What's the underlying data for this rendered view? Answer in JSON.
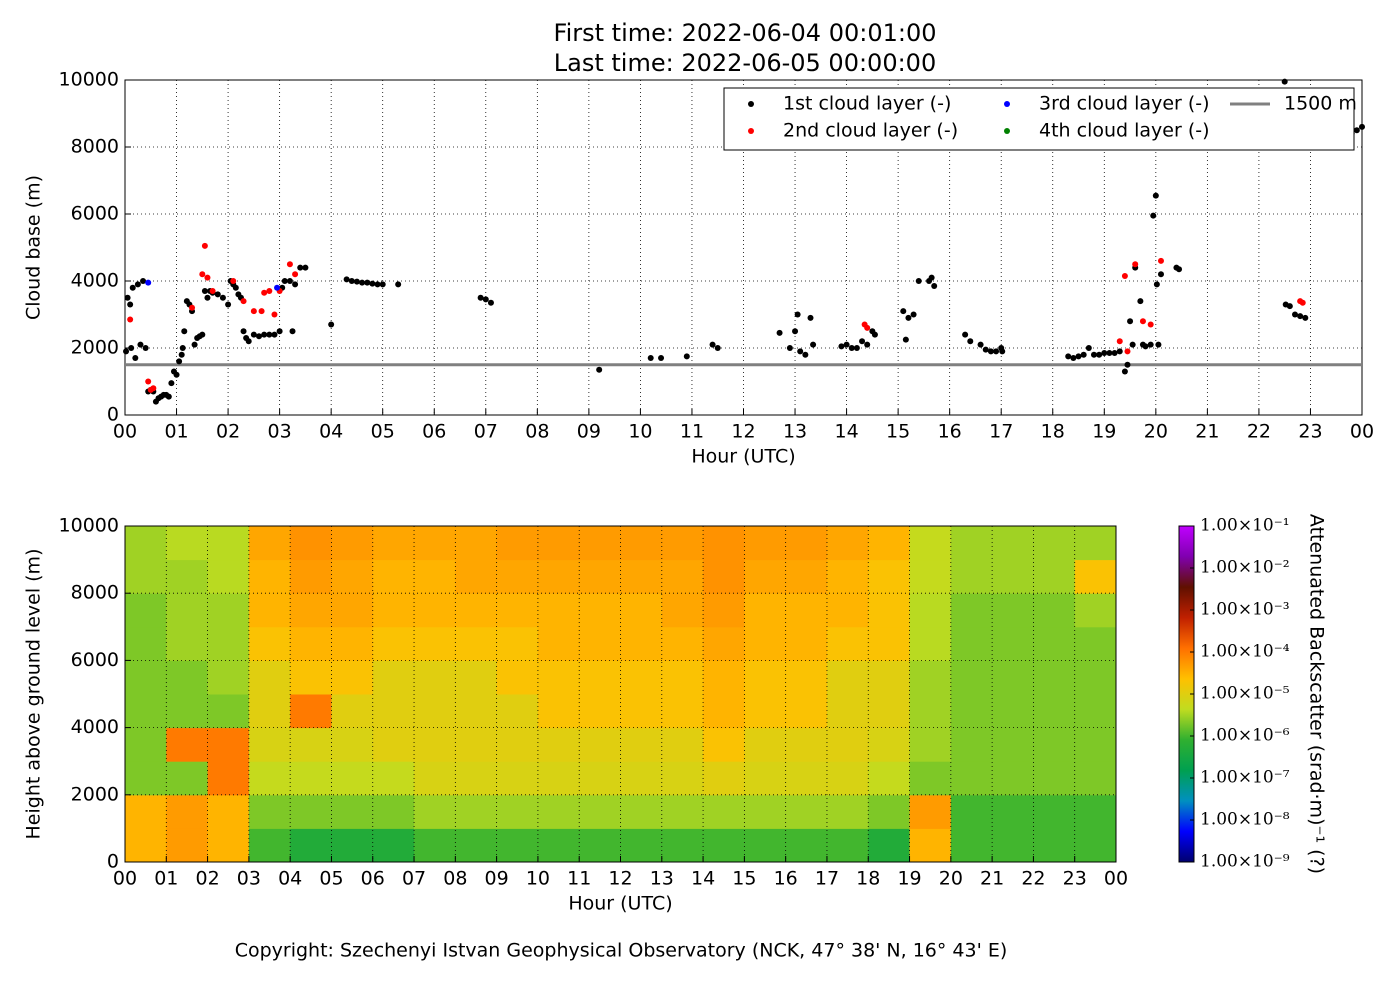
{
  "footer": "Copyright: Szechenyi Istvan Geophysical Observatory (NCK, 47° 38' N, 16° 43' E)",
  "chart_data": [
    {
      "type": "scatter",
      "title": "First time: 2022-06-04 00:01:00",
      "subtitle": "Last time: 2022-06-05 00:00:00",
      "xlabel": "Hour (UTC)",
      "ylabel": "Cloud base (m)",
      "xlim": [
        0,
        24
      ],
      "ylim": [
        0,
        10000
      ],
      "xticks": [
        {
          "value": 0,
          "label": "00"
        },
        {
          "value": 1,
          "label": "01"
        },
        {
          "value": 2,
          "label": "02"
        },
        {
          "value": 3,
          "label": "03"
        },
        {
          "value": 4,
          "label": "04"
        },
        {
          "value": 5,
          "label": "05"
        },
        {
          "value": 6,
          "label": "06"
        },
        {
          "value": 7,
          "label": "07"
        },
        {
          "value": 8,
          "label": "08"
        },
        {
          "value": 9,
          "label": "09"
        },
        {
          "value": 10,
          "label": "10"
        },
        {
          "value": 11,
          "label": "11"
        },
        {
          "value": 12,
          "label": "12"
        },
        {
          "value": 13,
          "label": "13"
        },
        {
          "value": 14,
          "label": "14"
        },
        {
          "value": 15,
          "label": "15"
        },
        {
          "value": 16,
          "label": "16"
        },
        {
          "value": 17,
          "label": "17"
        },
        {
          "value": 18,
          "label": "18"
        },
        {
          "value": 19,
          "label": "19"
        },
        {
          "value": 20,
          "label": "20"
        },
        {
          "value": 21,
          "label": "21"
        },
        {
          "value": 22,
          "label": "22"
        },
        {
          "value": 23,
          "label": "23"
        },
        {
          "value": 24,
          "label": "00"
        }
      ],
      "yticks": [
        0,
        2000,
        4000,
        6000,
        8000,
        10000
      ],
      "grid": true,
      "legend": "upper right",
      "legend_columns": 3,
      "series": [
        {
          "name": "1st cloud layer (-)",
          "color": "#000000",
          "x": [
            0.02,
            0.05,
            0.1,
            0.12,
            0.15,
            0.2,
            0.25,
            0.3,
            0.35,
            0.4,
            0.45,
            0.5,
            0.55,
            0.6,
            0.65,
            0.7,
            0.75,
            0.8,
            0.85,
            0.9,
            0.95,
            1.0,
            1.05,
            1.1,
            1.12,
            1.15,
            1.2,
            1.25,
            1.3,
            1.35,
            1.4,
            1.45,
            1.5,
            1.55,
            1.6,
            1.65,
            1.7,
            1.8,
            1.9,
            2.0,
            2.05,
            2.1,
            2.15,
            2.2,
            2.25,
            2.3,
            2.35,
            2.4,
            2.5,
            2.6,
            2.7,
            2.8,
            2.9,
            3.0,
            3.05,
            3.1,
            3.2,
            3.25,
            3.3,
            3.4,
            3.5,
            4.0,
            4.3,
            4.4,
            4.5,
            4.6,
            4.7,
            4.8,
            4.9,
            5.0,
            5.3,
            6.9,
            7.0,
            7.1,
            9.2,
            10.2,
            10.4,
            10.9,
            11.4,
            11.5,
            12.7,
            12.9,
            13.0,
            13.05,
            13.1,
            13.2,
            13.3,
            13.35,
            13.9,
            14.0,
            14.1,
            14.2,
            14.3,
            14.4,
            14.5,
            14.55,
            15.1,
            15.15,
            15.2,
            15.3,
            15.4,
            15.6,
            15.65,
            15.7,
            16.3,
            16.4,
            16.6,
            16.7,
            16.8,
            16.9,
            17.0,
            17.02,
            18.3,
            18.4,
            18.5,
            18.6,
            18.7,
            18.8,
            18.9,
            19.0,
            19.1,
            19.2,
            19.3,
            19.4,
            19.45,
            19.5,
            19.55,
            19.6,
            19.7,
            19.75,
            19.8,
            19.9,
            19.95,
            20.0,
            20.02,
            20.05,
            20.1,
            20.4,
            20.45,
            22.5,
            22.52,
            22.6,
            22.7,
            22.8,
            22.9,
            23.8,
            23.9,
            24.0
          ],
          "values": [
            1900,
            3500,
            3300,
            2000,
            3800,
            1700,
            3900,
            2100,
            4000,
            2000,
            700,
            750,
            700,
            400,
            500,
            550,
            600,
            600,
            550,
            950,
            1300,
            1200,
            1600,
            1800,
            2000,
            2500,
            3400,
            3300,
            3100,
            2100,
            2300,
            2350,
            2400,
            3700,
            3500,
            3700,
            3650,
            3600,
            3500,
            3300,
            4000,
            3900,
            3800,
            3600,
            3500,
            2500,
            2300,
            2200,
            2400,
            2350,
            2400,
            2400,
            2400,
            2500,
            3800,
            4000,
            4000,
            2500,
            3900,
            4400,
            4400,
            2700,
            4050,
            4000,
            3980,
            3950,
            3950,
            3920,
            3900,
            3900,
            3900,
            3500,
            3450,
            3350,
            1350,
            1700,
            1700,
            1750,
            2100,
            2000,
            2450,
            2000,
            2500,
            3000,
            1900,
            1800,
            2900,
            2100,
            2050,
            2100,
            2000,
            2000,
            2200,
            2100,
            2500,
            2400,
            3100,
            2250,
            2900,
            3000,
            4000,
            4000,
            4100,
            3850,
            2400,
            2200,
            2100,
            1950,
            1900,
            1900,
            2000,
            1900,
            1750,
            1700,
            1750,
            1800,
            2000,
            1800,
            1800,
            1850,
            1850,
            1850,
            1900,
            1300,
            1500,
            2800,
            2100,
            4400,
            3400,
            2100,
            2050,
            2100,
            5950,
            6550,
            3900,
            2100,
            4200,
            4400,
            4350,
            9950,
            3300,
            3250,
            3000,
            2950,
            2900,
            8400,
            8500,
            8600
          ]
        },
        {
          "name": "2nd cloud layer (-)",
          "color": "#ff0000",
          "x": [
            0.1,
            0.45,
            0.5,
            0.55,
            1.3,
            1.5,
            1.55,
            1.6,
            1.7,
            2.1,
            2.3,
            2.5,
            2.65,
            2.7,
            2.8,
            2.9,
            3.0,
            3.2,
            3.3,
            14.35,
            14.4,
            19.3,
            19.4,
            19.45,
            19.6,
            19.75,
            19.9,
            20.1,
            22.8,
            22.85
          ],
          "values": [
            2850,
            1000,
            750,
            800,
            3200,
            4200,
            5050,
            4100,
            3700,
            4000,
            3400,
            3100,
            3100,
            3650,
            3700,
            3000,
            3700,
            4500,
            4200,
            2700,
            2600,
            2200,
            4150,
            1900,
            4500,
            2800,
            2700,
            4600,
            3400,
            3350
          ]
        },
        {
          "name": "3rd cloud layer (-)",
          "color": "#0000ff",
          "x": [
            0.45,
            2.95
          ],
          "values": [
            3950,
            3800
          ]
        },
        {
          "name": "4th cloud layer (-)",
          "color": "#008000",
          "x": [],
          "values": []
        }
      ],
      "hlines": [
        {
          "name": "1500 m",
          "value": 1500,
          "color": "#808080"
        }
      ]
    },
    {
      "type": "heatmap",
      "xlabel": "Hour (UTC)",
      "ylabel": "Height above ground level (m)",
      "colorbar_label": "Attenuated Backscatter (srad·m)⁻¹ (?)",
      "xlim": [
        0,
        24
      ],
      "ylim": [
        0,
        10000
      ],
      "xticks": [
        {
          "value": 0,
          "label": "00"
        },
        {
          "value": 1,
          "label": "01"
        },
        {
          "value": 2,
          "label": "02"
        },
        {
          "value": 3,
          "label": "03"
        },
        {
          "value": 4,
          "label": "04"
        },
        {
          "value": 5,
          "label": "05"
        },
        {
          "value": 6,
          "label": "06"
        },
        {
          "value": 7,
          "label": "07"
        },
        {
          "value": 8,
          "label": "08"
        },
        {
          "value": 9,
          "label": "09"
        },
        {
          "value": 10,
          "label": "10"
        },
        {
          "value": 11,
          "label": "11"
        },
        {
          "value": 12,
          "label": "12"
        },
        {
          "value": 13,
          "label": "13"
        },
        {
          "value": 14,
          "label": "14"
        },
        {
          "value": 15,
          "label": "15"
        },
        {
          "value": 16,
          "label": "16"
        },
        {
          "value": 17,
          "label": "17"
        },
        {
          "value": 18,
          "label": "18"
        },
        {
          "value": 19,
          "label": "19"
        },
        {
          "value": 20,
          "label": "20"
        },
        {
          "value": 21,
          "label": "21"
        },
        {
          "value": 22,
          "label": "22"
        },
        {
          "value": 23,
          "label": "23"
        },
        {
          "value": 24,
          "label": "00"
        }
      ],
      "yticks": [
        0,
        2000,
        4000,
        6000,
        8000,
        10000
      ],
      "grid": true,
      "xbins": [
        0,
        1,
        2,
        3,
        4,
        5,
        6,
        7,
        8,
        9,
        10,
        11,
        12,
        13,
        14,
        15,
        16,
        17,
        18,
        19,
        20,
        21,
        22,
        23,
        24
      ],
      "ybins": [
        0,
        1000,
        2000,
        3000,
        4000,
        5000,
        6000,
        7000,
        8000,
        9000,
        10000
      ],
      "z": [
        [
          3e-05,
          5e-05,
          3e-05,
          1e-06,
          5e-07,
          5e-07,
          5e-07,
          1e-06,
          1e-06,
          1e-06,
          1e-06,
          1e-06,
          1e-06,
          1e-06,
          1e-06,
          1e-06,
          1e-06,
          1e-06,
          5e-07,
          3e-05,
          1e-06,
          1e-06,
          1e-06,
          1e-06
        ],
        [
          3e-05,
          5e-05,
          3e-05,
          2e-06,
          2e-06,
          2e-06,
          2e-06,
          3e-06,
          3e-06,
          3e-06,
          3e-06,
          3e-06,
          3e-06,
          3e-06,
          3e-06,
          3e-06,
          3e-06,
          3e-06,
          2e-06,
          5e-05,
          1e-06,
          1e-06,
          1e-06,
          1e-06
        ],
        [
          2e-06,
          2e-06,
          0.0001,
          5e-06,
          5e-06,
          5e-06,
          5e-06,
          8e-06,
          8e-06,
          8e-06,
          8e-06,
          8e-06,
          8e-06,
          8e-06,
          1e-05,
          8e-06,
          8e-06,
          8e-06,
          5e-06,
          2e-06,
          2e-06,
          2e-06,
          2e-06,
          2e-06
        ],
        [
          2e-06,
          0.0001,
          0.0001,
          8e-06,
          8e-06,
          8e-06,
          1e-05,
          1e-05,
          1e-05,
          1e-05,
          1e-05,
          1e-05,
          1e-05,
          1e-05,
          2e-05,
          1e-05,
          1e-05,
          1e-05,
          8e-06,
          3e-06,
          2e-06,
          2e-06,
          2e-06,
          2e-06
        ],
        [
          2e-06,
          2e-06,
          2e-06,
          1e-05,
          0.0001,
          1e-05,
          1e-05,
          1e-05,
          1e-05,
          1e-05,
          2e-05,
          2e-05,
          2e-05,
          2e-05,
          3e-05,
          2e-05,
          2e-05,
          1e-05,
          1e-05,
          3e-06,
          2e-06,
          2e-06,
          2e-06,
          2e-06
        ],
        [
          2e-06,
          2e-06,
          3e-06,
          1e-05,
          2e-05,
          2e-05,
          1e-05,
          1e-05,
          1e-05,
          2e-05,
          2e-05,
          2e-05,
          2e-05,
          2e-05,
          3e-05,
          2e-05,
          2e-05,
          1e-05,
          1e-05,
          3e-06,
          2e-06,
          2e-06,
          2e-06,
          2e-06
        ],
        [
          2e-06,
          3e-06,
          3e-06,
          2e-05,
          3e-05,
          3e-05,
          2e-05,
          2e-05,
          2e-05,
          2e-05,
          3e-05,
          3e-05,
          3e-05,
          3e-05,
          4e-05,
          3e-05,
          3e-05,
          2e-05,
          2e-05,
          4e-06,
          2e-06,
          2e-06,
          2e-06,
          2e-06
        ],
        [
          2e-06,
          3e-06,
          3e-06,
          3e-05,
          4e-05,
          4e-05,
          3e-05,
          3e-05,
          3e-05,
          3e-05,
          3e-05,
          3e-05,
          3e-05,
          4e-05,
          5e-05,
          3e-05,
          3e-05,
          3e-05,
          2e-05,
          4e-06,
          2e-06,
          2e-06,
          2e-06,
          3e-06
        ],
        [
          3e-06,
          3e-06,
          4e-06,
          3e-05,
          5e-05,
          4e-05,
          3e-05,
          3e-05,
          4e-05,
          4e-05,
          4e-05,
          4e-05,
          4e-05,
          4e-05,
          6e-05,
          4e-05,
          4e-05,
          3e-05,
          2e-05,
          5e-06,
          3e-06,
          3e-06,
          3e-06,
          2e-05
        ],
        [
          3e-06,
          4e-06,
          4e-06,
          4e-05,
          6e-05,
          5e-05,
          4e-05,
          4e-05,
          4e-05,
          5e-05,
          5e-05,
          5e-05,
          5e-05,
          5e-05,
          6e-05,
          5e-05,
          5e-05,
          4e-05,
          3e-05,
          5e-06,
          3e-06,
          3e-06,
          3e-06,
          3e-06
        ]
      ],
      "color_log": true,
      "clim": [
        1e-09,
        0.1
      ],
      "cticks": [
        {
          "value": 1e-09,
          "label": "1.00×10⁻⁹"
        },
        {
          "value": 1e-08,
          "label": "1.00×10⁻⁸"
        },
        {
          "value": 1e-07,
          "label": "1.00×10⁻⁷"
        },
        {
          "value": 1e-06,
          "label": "1.00×10⁻⁶"
        },
        {
          "value": 1e-05,
          "label": "1.00×10⁻⁵"
        },
        {
          "value": 0.0001,
          "label": "1.00×10⁻⁴"
        },
        {
          "value": 0.001,
          "label": "1.00×10⁻³"
        },
        {
          "value": 0.01,
          "label": "1.00×10⁻²"
        },
        {
          "value": 0.1,
          "label": "1.00×10⁻¹"
        }
      ],
      "colorscale": [
        "#00006e",
        "#0000ff",
        "#0090c0",
        "#00a050",
        "#30b030",
        "#c0dc20",
        "#ffc000",
        "#ff7000",
        "#c02000",
        "#601000",
        "#8000b0",
        "#c000ff"
      ]
    }
  ]
}
